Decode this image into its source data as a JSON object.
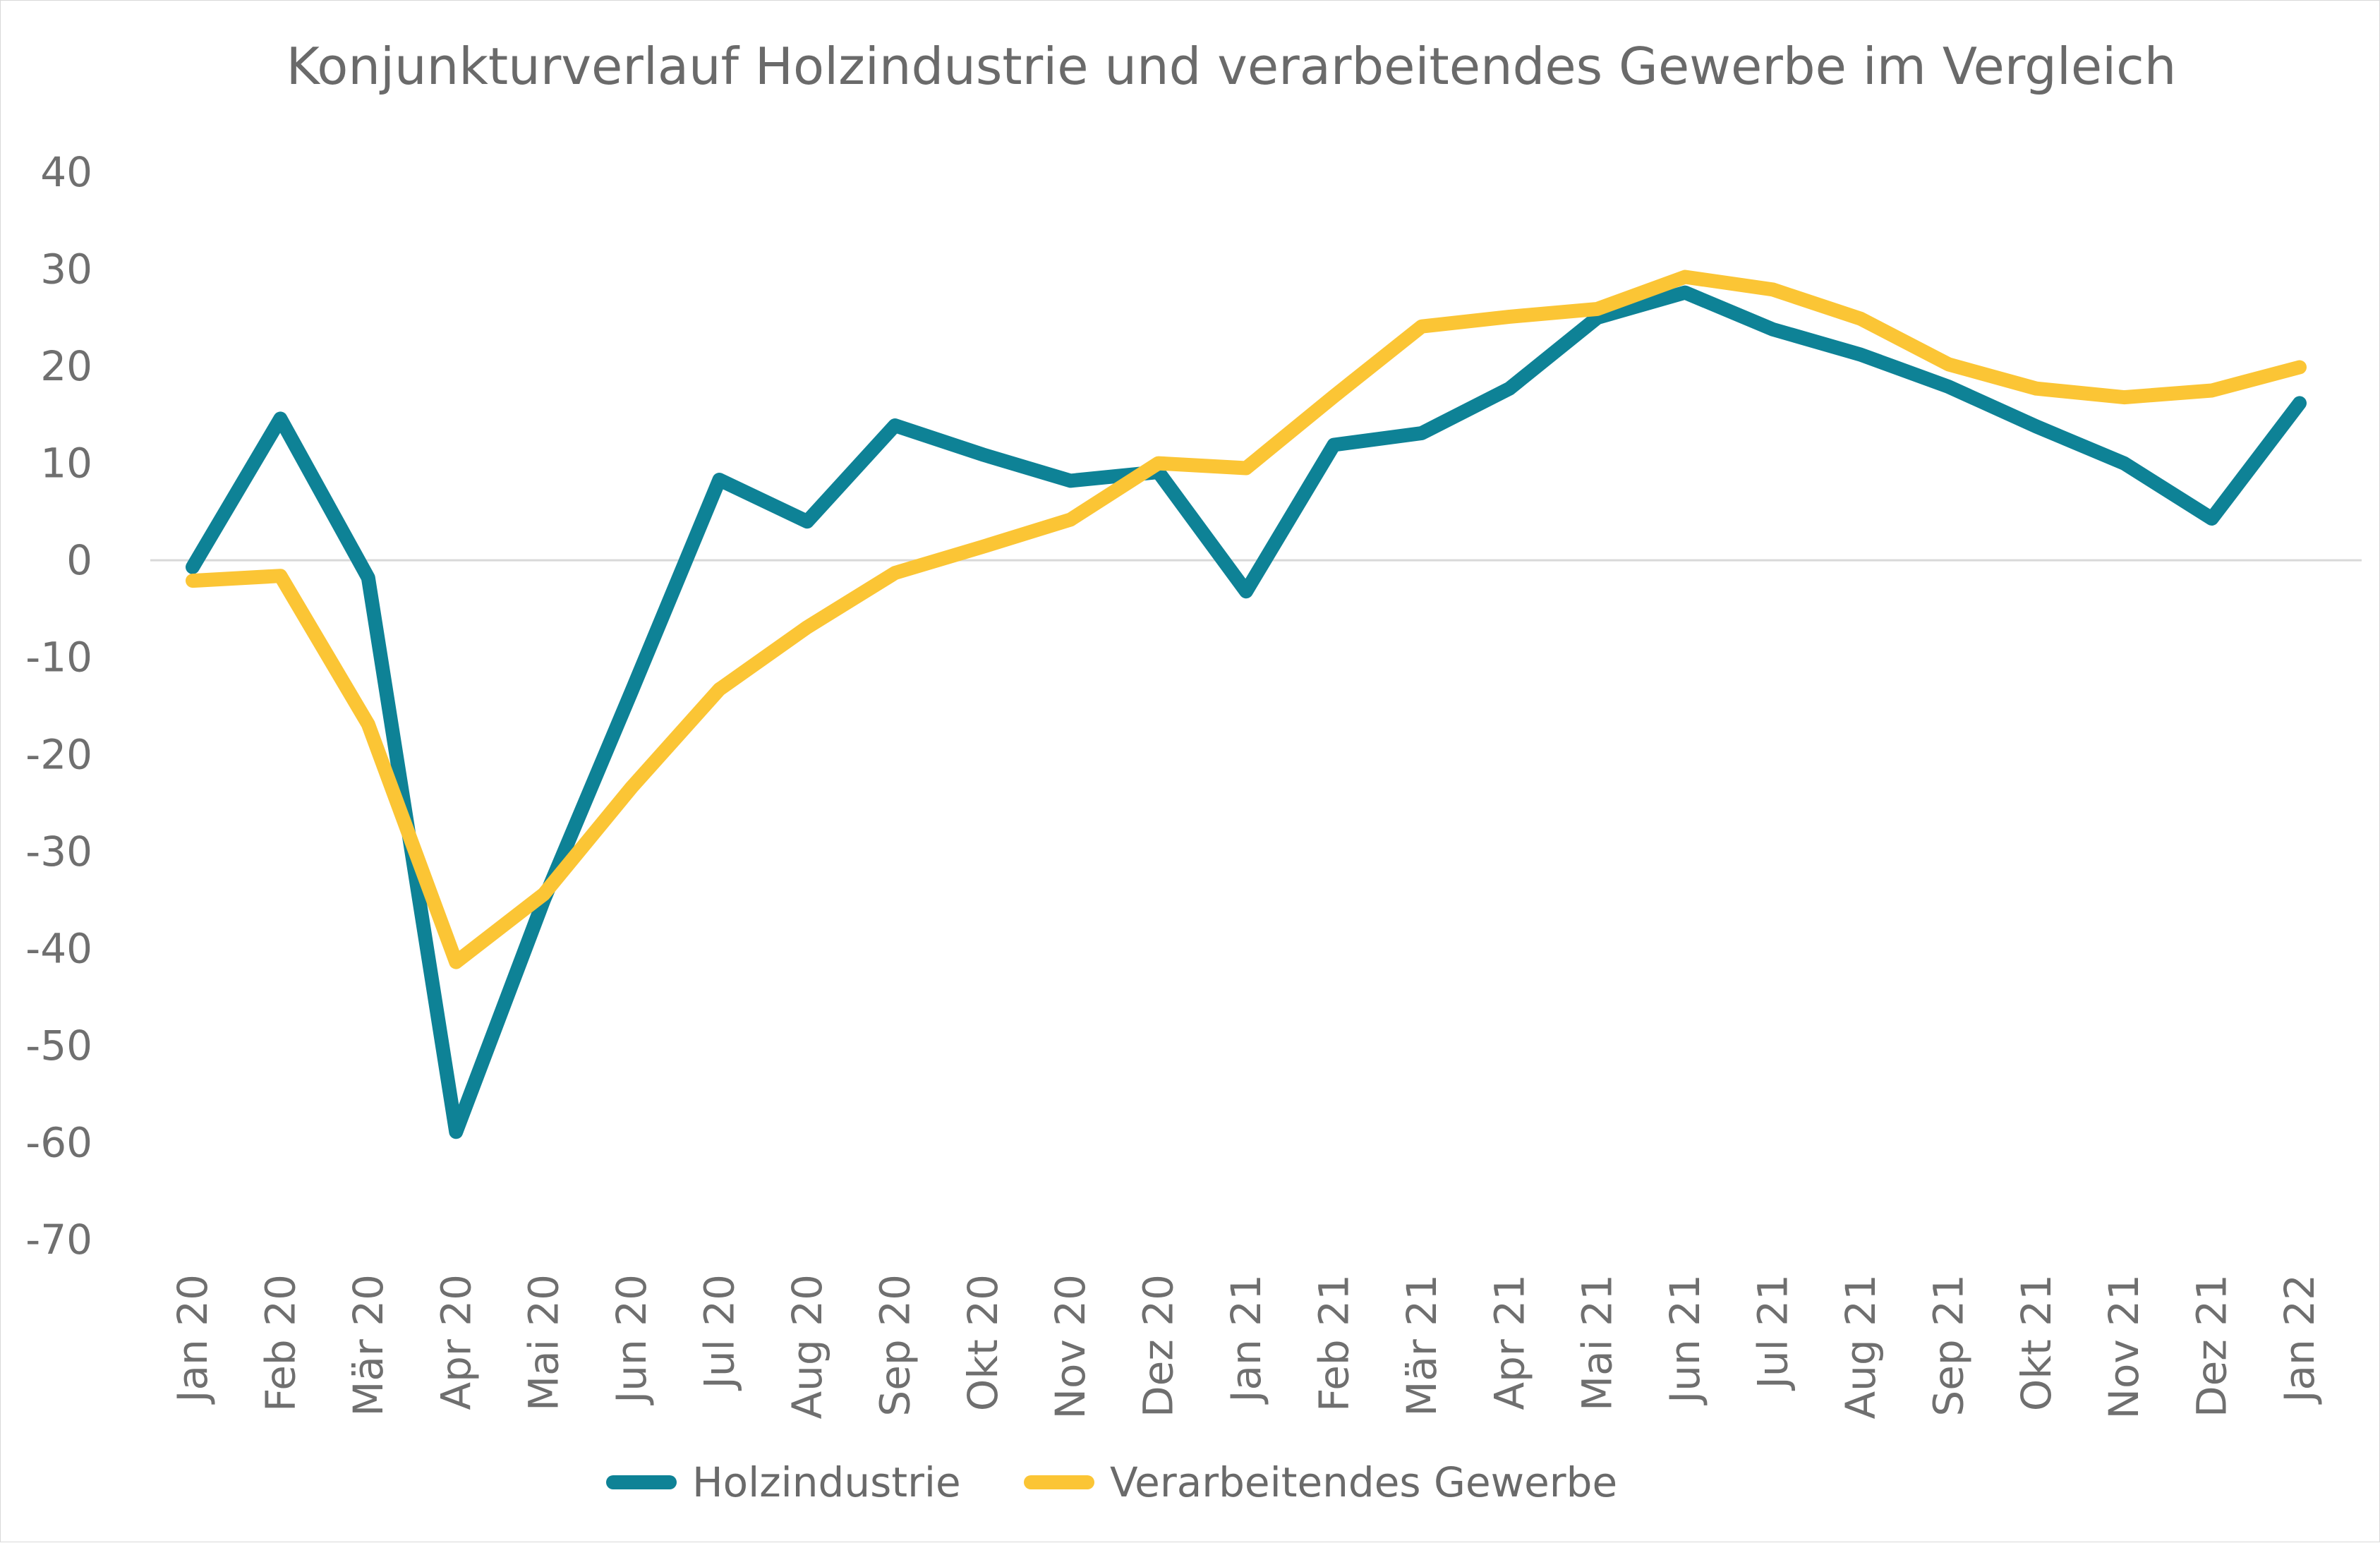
{
  "chart_data": {
    "type": "line",
    "title": "Konjunkturverlauf Holzindustrie und verarbeitendes Gewerbe im Vergleich",
    "xlabel": "",
    "ylabel": "",
    "ylim": [
      -70,
      40
    ],
    "yticks": [
      40,
      30,
      20,
      10,
      0,
      -10,
      -20,
      -30,
      -40,
      -50,
      -60,
      -70
    ],
    "grid": false,
    "legend_position": "bottom",
    "categories": [
      "Jan 20",
      "Feb 20",
      "Mär 20",
      "Apr 20",
      "Mai 20",
      "Jun 20",
      "Jul 20",
      "Aug 20",
      "Sep 20",
      "Okt 20",
      "Nov 20",
      "Dez 20",
      "Jan 21",
      "Feb 21",
      "Mär 21",
      "Apr 21",
      "Mai 21",
      "Jun 21",
      "Jul 21",
      "Aug 21",
      "Sep 21",
      "Okt 21",
      "Nov 21",
      "Dez 21",
      "Jan 22"
    ],
    "series": [
      {
        "name": "Holzindustrie",
        "color": "#0e8296",
        "values": [
          -0.7,
          14.6,
          -1.8,
          -58.9,
          -35.0,
          -13.5,
          8.3,
          4.0,
          13.9,
          10.9,
          8.2,
          9.1,
          -3.2,
          11.9,
          13.1,
          17.7,
          25.0,
          27.6,
          23.8,
          21.2,
          17.9,
          13.8,
          10.0,
          4.3,
          16.2
        ]
      },
      {
        "name": "Verarbeitendes Gewerbe",
        "color": "#fbc535",
        "values": [
          -2.1,
          -1.6,
          -16.9,
          -41.4,
          -34.4,
          -23.4,
          -13.3,
          -6.9,
          -1.3,
          1.4,
          4.2,
          10.0,
          9.5,
          16.9,
          24.1,
          25.1,
          25.9,
          29.2,
          27.9,
          24.9,
          20.2,
          17.7,
          16.8,
          17.5,
          19.9
        ]
      }
    ]
  }
}
